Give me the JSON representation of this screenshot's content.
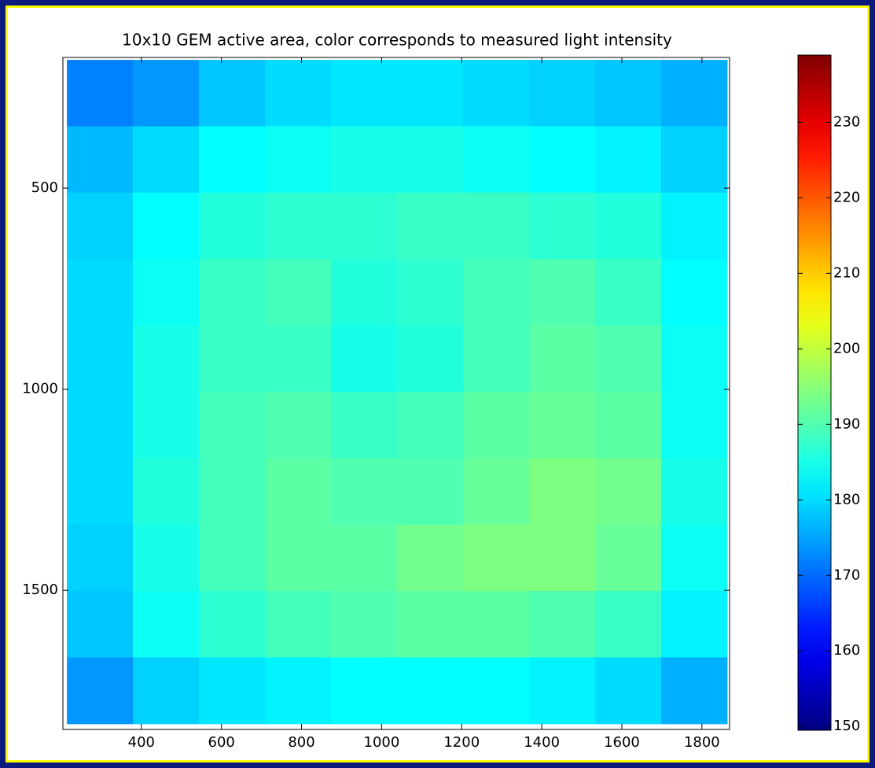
{
  "chart_data": {
    "type": "heatmap",
    "title": "10x10 GEM active area, color corresponds to measured light intensity",
    "xlim": [
      204,
      1869
    ],
    "xticks": [
      400,
      600,
      800,
      1000,
      1200,
      1400,
      1600,
      1800
    ],
    "ylim": [
      1846,
      175
    ],
    "yticks": [
      500,
      1000,
      1500
    ],
    "extent": [
      214,
      1863,
      1832,
      181
    ],
    "colormap": "jet",
    "clim": [
      149.5,
      238.9
    ],
    "cticks": [
      150,
      160,
      170,
      180,
      190,
      200,
      210,
      220,
      230
    ],
    "z": [
      [
        172,
        174,
        178,
        180,
        181,
        181,
        180,
        179,
        178,
        176
      ],
      [
        177,
        180,
        183,
        184,
        185,
        185,
        184,
        183,
        182,
        179
      ],
      [
        179,
        183,
        186,
        187,
        187,
        188,
        188,
        187,
        186,
        182
      ],
      [
        180,
        184,
        188,
        189,
        186,
        187,
        189,
        190,
        188,
        183
      ],
      [
        180,
        185,
        188,
        188,
        185,
        186,
        189,
        191,
        190,
        184
      ],
      [
        180,
        185,
        189,
        190,
        188,
        189,
        191,
        192,
        191,
        184
      ],
      [
        180,
        186,
        189,
        191,
        190,
        190,
        192,
        194,
        193,
        185
      ],
      [
        179,
        185,
        189,
        191,
        191,
        193,
        194,
        194,
        192,
        184
      ],
      [
        178,
        184,
        187,
        189,
        190,
        191,
        191,
        190,
        188,
        182
      ],
      [
        174,
        179,
        181,
        182,
        183,
        183,
        183,
        182,
        180,
        176
      ]
    ]
  }
}
